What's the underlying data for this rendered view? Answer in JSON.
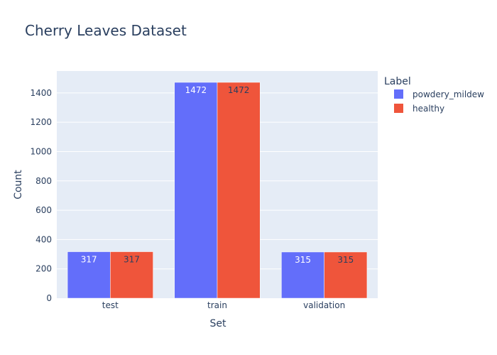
{
  "chart_data": {
    "type": "bar",
    "title": "Cherry Leaves Dataset",
    "xlabel": "Set",
    "ylabel": "Count",
    "categories": [
      "test",
      "train",
      "validation"
    ],
    "series": [
      {
        "name": "powdery_mildew",
        "values": [
          317,
          1472,
          315
        ],
        "color": "#636efa",
        "label_color": "#ffffff"
      },
      {
        "name": "healthy",
        "values": [
          317,
          1472,
          315
        ],
        "color": "#ef553b",
        "label_color": "#2a3f5f"
      }
    ],
    "ylim": [
      0,
      1549.47
    ],
    "yticks": [
      0,
      200,
      400,
      600,
      800,
      1000,
      1200,
      1400
    ],
    "grid": true,
    "legend": {
      "title": "Label",
      "position": "right"
    },
    "colors": {
      "plot_bg": "#e5ecf6",
      "grid": "#ffffff",
      "text": "#2a3f5f"
    }
  }
}
